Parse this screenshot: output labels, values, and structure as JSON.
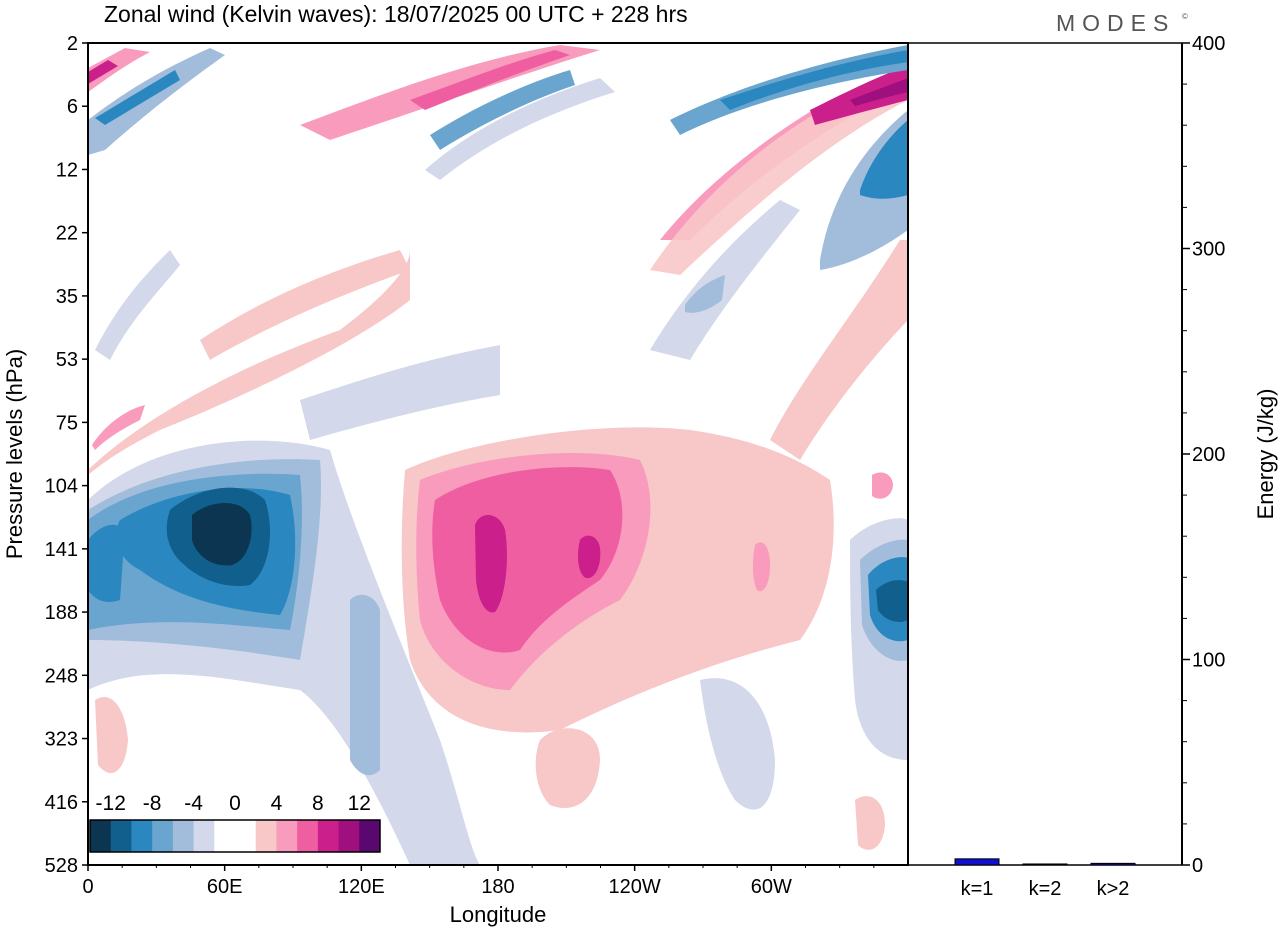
{
  "title": "Zonal wind (Kelvin waves):  18/07/2025  00 UTC  + 228 hrs",
  "brand": "MODES",
  "brand_mark": "©",
  "chart_data": [
    {
      "type": "heatmap",
      "xlabel": "Longitude",
      "ylabel": "Pressure levels (hPa)",
      "x_ticks": [
        "0",
        "60E",
        "120E",
        "180",
        "120W",
        "60W"
      ],
      "x_tick_values": [
        0,
        60,
        120,
        180,
        240,
        300
      ],
      "xlim": [
        0,
        360
      ],
      "y_ticks": [
        "2",
        "6",
        "12",
        "22",
        "35",
        "53",
        "75",
        "104",
        "141",
        "188",
        "248",
        "323",
        "416",
        "528"
      ],
      "y_scale": "log",
      "colorbar": {
        "labels": [
          "-12",
          "-8",
          "-4",
          "0",
          "4",
          "8",
          "12"
        ],
        "colors": [
          "#0b3550",
          "#115f8c",
          "#2a87bf",
          "#6aa5cf",
          "#a2bddb",
          "#d3d8ea",
          "#ffffff",
          "#ffffff",
          "#f8c7c8",
          "#f99bbd",
          "#ee5ea0",
          "#cb1f8c",
          "#a00f7e",
          "#5a0770"
        ]
      },
      "features": [
        {
          "sign": "negative",
          "value": -14,
          "lon": 30,
          "p": 141
        },
        {
          "sign": "positive",
          "value": 12,
          "lon": 180,
          "p": 141
        },
        {
          "sign": "positive",
          "value": 11,
          "lon": 220,
          "p": 130
        },
        {
          "sign": "negative",
          "value": -11,
          "lon": 355,
          "p": 170
        },
        {
          "sign": "positive",
          "value": 13,
          "lon": 350,
          "p": 6
        }
      ]
    },
    {
      "type": "bar",
      "categories": [
        "k=1",
        "k=2",
        "k>2"
      ],
      "values": [
        3,
        0.5,
        0.8
      ],
      "ylabel": "Energy (J/kg)",
      "ylim": [
        0,
        400
      ],
      "y_ticks": [
        "0",
        "100",
        "200",
        "300",
        "400"
      ],
      "bar_color": "#1010d0"
    }
  ]
}
